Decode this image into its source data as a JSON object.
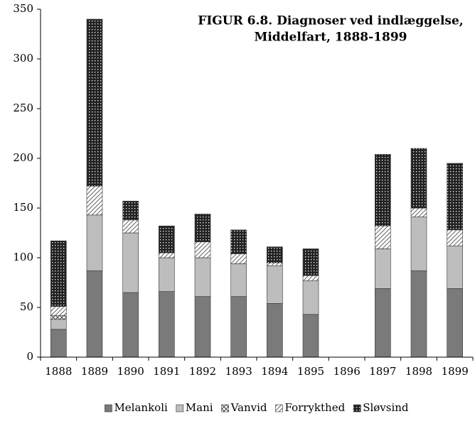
{
  "chart_data": {
    "type": "stacked_bar",
    "title": [
      "FIGUR 6.8. Diagnoser ved indlæggelse,",
      "Middelfart, 1888-1899"
    ],
    "categories": [
      "1888",
      "1889",
      "1890",
      "1891",
      "1892",
      "1893",
      "1894",
      "1895",
      "1896",
      "1897",
      "1898",
      "1899"
    ],
    "series": [
      {
        "name": "Melankoli",
        "color": "#7a7a7a",
        "pattern": "solid",
        "values": [
          28,
          87,
          65,
          66,
          61,
          61,
          54,
          43,
          null,
          69,
          87,
          69
        ]
      },
      {
        "name": "Mani",
        "color": "#bdbdbd",
        "pattern": "solid",
        "values": [
          10,
          56,
          60,
          34,
          39,
          33,
          38,
          34,
          null,
          40,
          54,
          43
        ]
      },
      {
        "name": "Vanvid",
        "color": "#555555",
        "pattern": "crosshatch",
        "values": [
          4,
          0,
          0,
          0,
          0,
          0,
          0,
          0,
          null,
          0,
          0,
          0
        ]
      },
      {
        "name": "Forrykthed",
        "color": "#666666",
        "pattern": "hatch",
        "values": [
          9,
          29,
          13,
          5,
          16,
          10,
          3,
          5,
          null,
          23,
          9,
          16
        ]
      },
      {
        "name": "Sløvsind",
        "color": "#222222",
        "pattern": "dots",
        "values": [
          66,
          168,
          19,
          27,
          28,
          24,
          16,
          27,
          null,
          72,
          60,
          67
        ]
      }
    ],
    "ylim": [
      0,
      350
    ],
    "yticks": [
      0,
      50,
      100,
      150,
      200,
      250,
      300,
      350
    ],
    "grid": false,
    "legend": "bottom"
  }
}
